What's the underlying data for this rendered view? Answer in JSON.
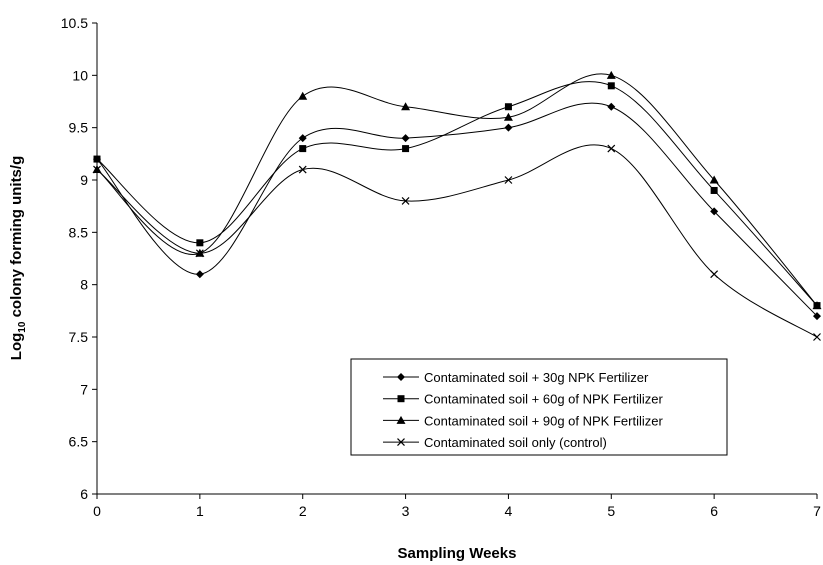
{
  "chart_data": {
    "type": "line",
    "title": "",
    "xlabel": "Sampling Weeks",
    "ylabel_main": "Log",
    "ylabel_sub": "10",
    "ylabel_rest": " colony forming units/g",
    "x": [
      0,
      1,
      2,
      3,
      4,
      5,
      6,
      7
    ],
    "xlim": [
      0,
      7
    ],
    "ylim": [
      6,
      10.5
    ],
    "xticks": [
      "0",
      "1",
      "2",
      "3",
      "4",
      "5",
      "6",
      "7"
    ],
    "yticks": [
      "6",
      "6.5",
      "7",
      "7.5",
      "8",
      "8.5",
      "9",
      "9.5",
      "10",
      "10.5"
    ],
    "grid": false,
    "legend_position": "bottom-right",
    "smooth": true,
    "series": [
      {
        "name": "Contaminated soil + 30g NPK Fertilizer",
        "marker": "diamond",
        "values": [
          9.2,
          8.1,
          9.4,
          9.4,
          9.5,
          9.7,
          8.7,
          7.7
        ]
      },
      {
        "name": "Contaminated soil + 60g of NPK Fertilizer",
        "marker": "square",
        "values": [
          9.2,
          8.4,
          9.3,
          9.3,
          9.7,
          9.9,
          8.9,
          7.8
        ]
      },
      {
        "name": "Contaminated soil + 90g of NPK Fertilizer",
        "marker": "triangle",
        "values": [
          9.1,
          8.3,
          9.8,
          9.7,
          9.6,
          10.0,
          9.0,
          7.8
        ]
      },
      {
        "name": "Contaminated soil only (control)",
        "marker": "cross",
        "values": [
          9.1,
          8.3,
          9.1,
          8.8,
          9.0,
          9.3,
          8.1,
          7.5
        ]
      }
    ]
  }
}
